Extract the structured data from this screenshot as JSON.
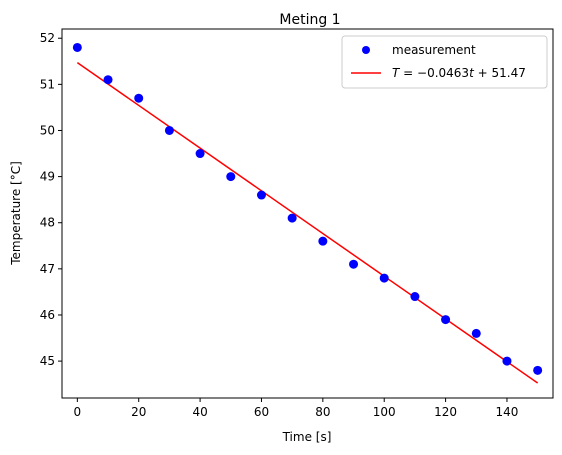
{
  "chart_data": {
    "type": "scatter",
    "title": "Meting 1",
    "xlabel": "Time [s]",
    "ylabel": "Temperature [°C]",
    "xlim": [
      -5,
      155
    ],
    "ylim": [
      44.2,
      52.2
    ],
    "xticks": [
      0,
      20,
      40,
      60,
      80,
      100,
      120,
      140
    ],
    "yticks": [
      45,
      46,
      47,
      48,
      49,
      50,
      51,
      52
    ],
    "grid": false,
    "legend_position": "top-right",
    "series": [
      {
        "name": "measurement",
        "kind": "scatter",
        "color": "#0000ff",
        "x": [
          0,
          10,
          20,
          30,
          40,
          50,
          60,
          70,
          80,
          90,
          100,
          110,
          120,
          130,
          140,
          150
        ],
        "y": [
          51.8,
          51.1,
          50.7,
          50.0,
          49.5,
          49.0,
          48.6,
          48.1,
          47.6,
          47.1,
          46.8,
          46.4,
          45.9,
          45.6,
          45.0,
          44.8
        ]
      },
      {
        "name": "T = −0.0463t + 51.47",
        "kind": "line",
        "color": "#ff0000",
        "slope": -0.0463,
        "intercept": 51.47,
        "x": [
          0,
          150
        ]
      }
    ]
  }
}
